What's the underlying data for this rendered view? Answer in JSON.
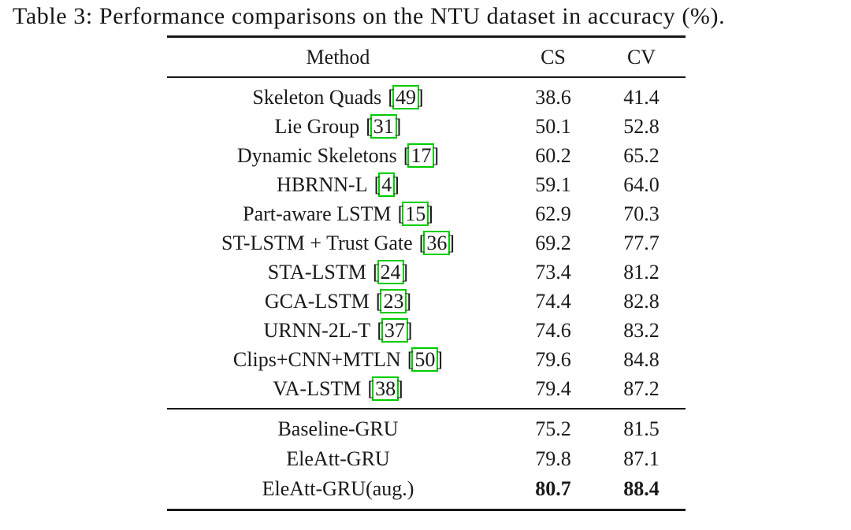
{
  "title": "Table 3: Performance comparisons on the NTU dataset in accuracy (%).",
  "table": {
    "columns": [
      "Method",
      "CS",
      "CV"
    ],
    "citation_border_color": "#00cc00",
    "text_color": "#1a1a1a",
    "sections": [
      {
        "name": "prior-methods",
        "rows": [
          {
            "method": "Skeleton Quads",
            "citation": "49",
            "cs": "38.6",
            "cv": "41.4",
            "bold": false
          },
          {
            "method": "Lie Group",
            "citation": "31",
            "cs": "50.1",
            "cv": "52.8",
            "bold": false
          },
          {
            "method": "Dynamic Skeletons",
            "citation": "17",
            "cs": "60.2",
            "cv": "65.2",
            "bold": false
          },
          {
            "method": "HBRNN-L",
            "citation": "4",
            "cs": "59.1",
            "cv": "64.0",
            "bold": false
          },
          {
            "method": "Part-aware LSTM",
            "citation": "15",
            "cs": "62.9",
            "cv": "70.3",
            "bold": false
          },
          {
            "method": "ST-LSTM + Trust Gate",
            "citation": "36",
            "cs": "69.2",
            "cv": "77.7",
            "bold": false
          },
          {
            "method": "STA-LSTM",
            "citation": "24",
            "cs": "73.4",
            "cv": "81.2",
            "bold": false
          },
          {
            "method": "GCA-LSTM",
            "citation": "23",
            "cs": "74.4",
            "cv": "82.8",
            "bold": false
          },
          {
            "method": "URNN-2L-T",
            "citation": "37",
            "cs": "74.6",
            "cv": "83.2",
            "bold": false
          },
          {
            "method": "Clips+CNN+MTLN",
            "citation": "50",
            "cs": "79.6",
            "cv": "84.8",
            "bold": false
          },
          {
            "method": "VA-LSTM",
            "citation": "38",
            "cs": "79.4",
            "cv": "87.2",
            "bold": false
          }
        ]
      },
      {
        "name": "proposed-methods",
        "rows": [
          {
            "method": "Baseline-GRU",
            "citation": "",
            "cs": "75.2",
            "cv": "81.5",
            "bold": false
          },
          {
            "method": "EleAtt-GRU",
            "citation": "",
            "cs": "79.8",
            "cv": "87.1",
            "bold": false
          },
          {
            "method": "EleAtt-GRU(aug.)",
            "citation": "",
            "cs": "80.7",
            "cv": "88.4",
            "bold": true
          }
        ]
      }
    ]
  }
}
